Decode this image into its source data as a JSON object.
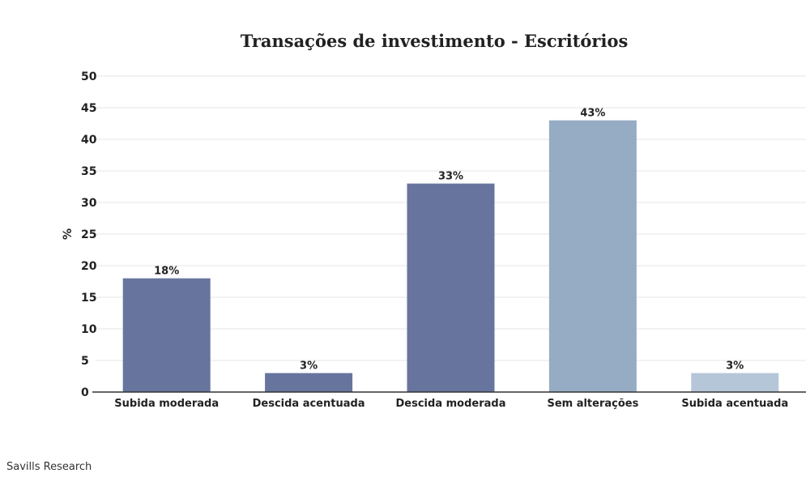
{
  "chart_data": {
    "type": "bar",
    "title": "Transações de investimento - Escritórios",
    "xlabel": "",
    "ylabel": "%",
    "ylim": [
      0,
      50
    ],
    "yticks": [
      "0",
      "5",
      "10",
      "15",
      "20",
      "25",
      "30",
      "35",
      "40",
      "45",
      "50"
    ],
    "grid": true,
    "categories": [
      "Subida moderada",
      "Descida acentuada",
      "Descida moderada",
      "Sem alterações",
      "Subida acentuada"
    ],
    "values": [
      18,
      3,
      33,
      43,
      3
    ],
    "data_labels": [
      "18%",
      "3%",
      "33%",
      "43%",
      "3%"
    ],
    "colors": [
      "#67759e",
      "#67759e",
      "#67759e",
      "#96acc4",
      "#b5c6d8"
    ]
  },
  "footer": {
    "source": "Savills Research"
  }
}
